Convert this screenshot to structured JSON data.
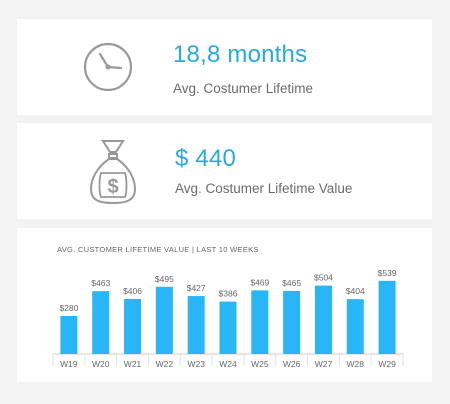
{
  "kpis": [
    {
      "value": "18,8 months",
      "label": "Avg. Costumer Lifetime",
      "icon": "clock-icon"
    },
    {
      "value": "$ 440",
      "label": "Avg. Costumer Lifetime Value",
      "icon": "money-bag-icon"
    }
  ],
  "colors": {
    "accent": "#27a9e1",
    "bar": "#29b6f6",
    "icon_stroke": "#999999",
    "text": "#6b6b6b",
    "background": "#f3f3f3"
  },
  "chart_data": {
    "type": "bar",
    "title": "AVG. CUSTOMER LIFETIME VALUE | LAST 10 WEEKS",
    "categories": [
      "W19",
      "W20",
      "W21",
      "W22",
      "W23",
      "W24",
      "W25",
      "W26",
      "W27",
      "W28",
      "W29"
    ],
    "values": [
      280,
      463,
      406,
      495,
      427,
      386,
      469,
      465,
      504,
      404,
      539
    ],
    "value_labels": [
      "$280",
      "$463",
      "$406",
      "$495",
      "$427",
      "$386",
      "$469",
      "$465",
      "$504",
      "$404",
      "$539"
    ],
    "xlabel": "",
    "ylabel": "",
    "ylim": [
      0,
      560
    ],
    "grid": false
  }
}
